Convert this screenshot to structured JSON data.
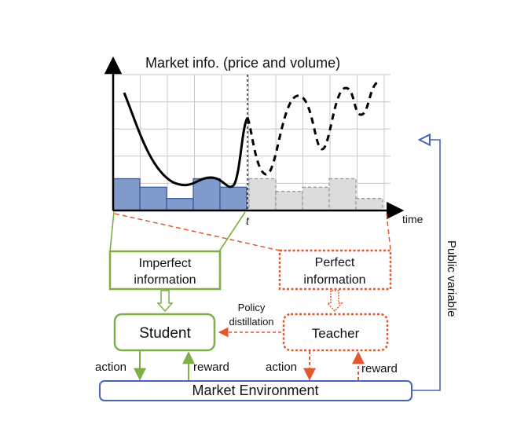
{
  "chart": {
    "title": "Market info. (price and volume)",
    "x_axis_label": "time",
    "cutoff_label": "t"
  },
  "chart_data": {
    "type": "bar",
    "volume_bars": {
      "past": [
        0.45,
        0.33,
        0.17,
        0.45,
        0.33
      ],
      "future": [
        0.45,
        0.27,
        0.33,
        0.45,
        0.17
      ]
    },
    "price_line": {
      "past": "solid",
      "future": "dashed"
    }
  },
  "boxes": {
    "imperfect": [
      "Imperfect",
      "information"
    ],
    "perfect": [
      "Perfect",
      "information"
    ],
    "student": "Student",
    "teacher": "Teacher",
    "environment": "Market Environment"
  },
  "labels": {
    "policy_distillation": [
      "Policy",
      "distillation"
    ],
    "student_action": "action",
    "student_reward": "reward",
    "teacher_action": "action",
    "teacher_reward": "reward",
    "public_variable": "Public variable"
  },
  "colors": {
    "green": "#7FAE47",
    "red": "#E2582F",
    "blue": "#4A63B8",
    "past_bar_fill": "#7F9ACB",
    "past_bar_stroke": "#3D5C9A",
    "future_bar_fill": "#DCDCDC",
    "future_bar_stroke": "#9A9A9A",
    "grid": "#C8C8C8"
  }
}
